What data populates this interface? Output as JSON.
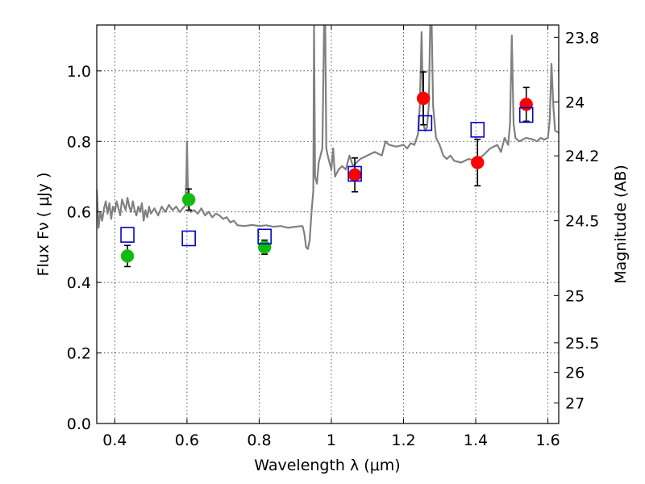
{
  "chart_data": {
    "type": "scatter",
    "xlabel": "Wavelength  λ (μm)",
    "ylabel": "Flux  Fν  ( μJy )",
    "y2label": "Magnitude (AB)",
    "xlim": [
      0.35,
      1.63
    ],
    "ylim": [
      0.0,
      1.13
    ],
    "grid": true,
    "x_ticks": [
      {
        "value": 0.4,
        "label": "0.4"
      },
      {
        "value": 0.6,
        "label": "0.6"
      },
      {
        "value": 0.8,
        "label": "0.8"
      },
      {
        "value": 1.0,
        "label": "1"
      },
      {
        "value": 1.2,
        "label": "1.2"
      },
      {
        "value": 1.4,
        "label": "1.4"
      },
      {
        "value": 1.6,
        "label": "1.6"
      }
    ],
    "y_ticks": [
      {
        "value": 0.0,
        "label": "0.0"
      },
      {
        "value": 0.2,
        "label": "0.2"
      },
      {
        "value": 0.4,
        "label": "0.4"
      },
      {
        "value": 0.6,
        "label": "0.6"
      },
      {
        "value": 0.8,
        "label": "0.8"
      },
      {
        "value": 1.0,
        "label": "1.0"
      }
    ],
    "y2_ticks": [
      {
        "flux": 1.095,
        "label": "23.8"
      },
      {
        "flux": 0.912,
        "label": "24"
      },
      {
        "flux": 0.759,
        "label": "24.2"
      },
      {
        "flux": 0.575,
        "label": "24.5"
      },
      {
        "flux": 0.363,
        "label": "25"
      },
      {
        "flux": 0.229,
        "label": "25.5"
      },
      {
        "flux": 0.145,
        "label": "26"
      },
      {
        "flux": 0.058,
        "label": "27"
      }
    ],
    "colors": {
      "green": "#11bb11",
      "red": "#ff0000",
      "square": "#0000cc",
      "spectrum": "#808080",
      "errorbar": "#000000"
    },
    "series": [
      {
        "name": "green-photometry",
        "color": "#11bb11",
        "points": [
          {
            "x": 0.435,
            "y": 0.475,
            "err": 0.03
          },
          {
            "x": 0.605,
            "y": 0.635,
            "err": 0.03
          },
          {
            "x": 0.815,
            "y": 0.5,
            "err": 0.02
          }
        ]
      },
      {
        "name": "red-photometry",
        "color": "#ff0000",
        "points": [
          {
            "x": 1.065,
            "y": 0.705,
            "err": 0.048
          },
          {
            "x": 1.255,
            "y": 0.922,
            "err": 0.075
          },
          {
            "x": 1.405,
            "y": 0.74,
            "err": 0.066
          },
          {
            "x": 1.54,
            "y": 0.905,
            "err": 0.048
          }
        ]
      },
      {
        "name": "model-bandpass",
        "color": "#0000cc",
        "points": [
          {
            "x": 0.435,
            "y": 0.535
          },
          {
            "x": 0.605,
            "y": 0.525
          },
          {
            "x": 0.815,
            "y": 0.53
          },
          {
            "x": 1.065,
            "y": 0.708
          },
          {
            "x": 1.26,
            "y": 0.852
          },
          {
            "x": 1.405,
            "y": 0.833
          },
          {
            "x": 1.54,
            "y": 0.875
          }
        ]
      }
    ],
    "spectrum": [
      [
        0.35,
        0.665
      ],
      [
        0.355,
        0.555
      ],
      [
        0.36,
        0.6
      ],
      [
        0.365,
        0.575
      ],
      [
        0.37,
        0.61
      ],
      [
        0.375,
        0.63
      ],
      [
        0.38,
        0.595
      ],
      [
        0.385,
        0.625
      ],
      [
        0.39,
        0.58
      ],
      [
        0.395,
        0.615
      ],
      [
        0.4,
        0.6
      ],
      [
        0.405,
        0.63
      ],
      [
        0.41,
        0.61
      ],
      [
        0.415,
        0.59
      ],
      [
        0.42,
        0.635
      ],
      [
        0.425,
        0.62
      ],
      [
        0.43,
        0.605
      ],
      [
        0.435,
        0.64
      ],
      [
        0.44,
        0.615
      ],
      [
        0.445,
        0.6
      ],
      [
        0.45,
        0.63
      ],
      [
        0.455,
        0.605
      ],
      [
        0.46,
        0.59
      ],
      [
        0.465,
        0.615
      ],
      [
        0.47,
        0.6
      ],
      [
        0.475,
        0.625
      ],
      [
        0.48,
        0.575
      ],
      [
        0.485,
        0.605
      ],
      [
        0.49,
        0.585
      ],
      [
        0.495,
        0.615
      ],
      [
        0.5,
        0.595
      ],
      [
        0.51,
        0.61
      ],
      [
        0.52,
        0.59
      ],
      [
        0.53,
        0.615
      ],
      [
        0.54,
        0.6
      ],
      [
        0.55,
        0.62
      ],
      [
        0.56,
        0.605
      ],
      [
        0.57,
        0.615
      ],
      [
        0.58,
        0.6
      ],
      [
        0.59,
        0.612
      ],
      [
        0.595,
        0.618
      ],
      [
        0.598,
        0.68
      ],
      [
        0.6,
        0.8
      ],
      [
        0.602,
        0.69
      ],
      [
        0.605,
        0.615
      ],
      [
        0.61,
        0.6
      ],
      [
        0.62,
        0.605
      ],
      [
        0.63,
        0.595
      ],
      [
        0.64,
        0.61
      ],
      [
        0.65,
        0.59
      ],
      [
        0.66,
        0.6
      ],
      [
        0.67,
        0.585
      ],
      [
        0.68,
        0.595
      ],
      [
        0.69,
        0.59
      ],
      [
        0.7,
        0.58
      ],
      [
        0.71,
        0.585
      ],
      [
        0.72,
        0.57
      ],
      [
        0.73,
        0.575
      ],
      [
        0.74,
        0.562
      ],
      [
        0.76,
        0.56
      ],
      [
        0.78,
        0.563
      ],
      [
        0.8,
        0.56
      ],
      [
        0.82,
        0.562
      ],
      [
        0.84,
        0.558
      ],
      [
        0.86,
        0.56
      ],
      [
        0.88,
        0.555
      ],
      [
        0.9,
        0.558
      ],
      [
        0.92,
        0.56
      ],
      [
        0.925,
        0.54
      ],
      [
        0.93,
        0.5
      ],
      [
        0.935,
        0.495
      ],
      [
        0.94,
        0.52
      ],
      [
        0.945,
        0.6
      ],
      [
        0.95,
        0.66
      ],
      [
        0.952,
        1.13
      ],
      [
        0.955,
        0.7
      ],
      [
        0.96,
        0.68
      ],
      [
        0.965,
        0.74
      ],
      [
        0.97,
        0.76
      ],
      [
        0.975,
        0.78
      ],
      [
        0.98,
        1.13
      ],
      [
        0.983,
        1.13
      ],
      [
        0.986,
        0.78
      ],
      [
        0.99,
        0.76
      ],
      [
        0.995,
        0.74
      ],
      [
        1.0,
        0.72
      ],
      [
        1.005,
        0.78
      ],
      [
        1.01,
        0.7
      ],
      [
        1.02,
        0.72
      ],
      [
        1.03,
        0.73
      ],
      [
        1.04,
        0.72
      ],
      [
        1.05,
        0.76
      ],
      [
        1.06,
        0.73
      ],
      [
        1.08,
        0.75
      ],
      [
        1.1,
        0.76
      ],
      [
        1.12,
        0.77
      ],
      [
        1.14,
        0.76
      ],
      [
        1.15,
        0.8
      ],
      [
        1.16,
        0.79
      ],
      [
        1.18,
        0.785
      ],
      [
        1.2,
        0.79
      ],
      [
        1.21,
        0.78
      ],
      [
        1.22,
        0.795
      ],
      [
        1.23,
        0.79
      ],
      [
        1.24,
        0.82
      ],
      [
        1.245,
        0.9
      ],
      [
        1.25,
        1.11
      ],
      [
        1.255,
        0.85
      ],
      [
        1.26,
        0.83
      ],
      [
        1.265,
        0.84
      ],
      [
        1.27,
        0.9
      ],
      [
        1.274,
        1.13
      ],
      [
        1.278,
        1.13
      ],
      [
        1.282,
        0.9
      ],
      [
        1.29,
        0.81
      ],
      [
        1.3,
        0.79
      ],
      [
        1.31,
        0.76
      ],
      [
        1.32,
        0.75
      ],
      [
        1.33,
        0.76
      ],
      [
        1.34,
        0.745
      ],
      [
        1.36,
        0.74
      ],
      [
        1.38,
        0.75
      ],
      [
        1.4,
        0.745
      ],
      [
        1.42,
        0.76
      ],
      [
        1.44,
        0.78
      ],
      [
        1.46,
        0.79
      ],
      [
        1.47,
        0.77
      ],
      [
        1.48,
        0.81
      ],
      [
        1.49,
        0.79
      ],
      [
        1.495,
        0.85
      ],
      [
        1.5,
        1.1
      ],
      [
        1.505,
        0.85
      ],
      [
        1.51,
        0.81
      ],
      [
        1.52,
        0.8
      ],
      [
        1.54,
        0.81
      ],
      [
        1.56,
        0.805
      ],
      [
        1.57,
        0.8
      ],
      [
        1.58,
        0.81
      ],
      [
        1.59,
        0.805
      ],
      [
        1.6,
        0.81
      ],
      [
        1.605,
        0.86
      ],
      [
        1.61,
        1.02
      ],
      [
        1.615,
        0.9
      ],
      [
        1.62,
        0.83
      ],
      [
        1.63,
        0.825
      ]
    ]
  }
}
